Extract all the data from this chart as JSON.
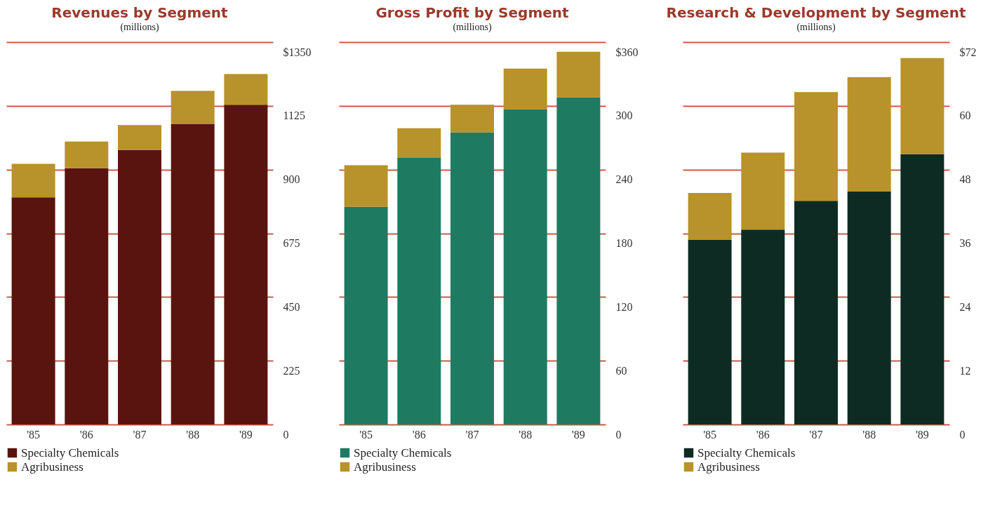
{
  "chart_data": [
    {
      "type": "bar",
      "title": "Revenues by Segment",
      "subtitle": "(millions)",
      "categories": [
        "'85",
        "'86",
        "'87",
        "'88",
        "'89"
      ],
      "stacked": true,
      "series": [
        {
          "name": "Specialty Chemicals",
          "color": "#5a1410",
          "values": [
            802,
            905,
            969,
            1060,
            1129
          ]
        },
        {
          "name": "Agribusiness",
          "color": "#b8922a",
          "values": [
            118,
            94,
            88,
            118,
            108
          ]
        }
      ],
      "ylim": [
        0,
        1350
      ],
      "yticks": [
        0,
        225,
        450,
        675,
        900,
        1125,
        {
          "value": 1350,
          "label": "$1350"
        }
      ],
      "grid": "y",
      "legend": "bottom"
    },
    {
      "type": "bar",
      "title": "Gross Profit by Segment",
      "subtitle": "(millions)",
      "categories": [
        "'85",
        "'86",
        "'87",
        "'88",
        "'89"
      ],
      "stacked": true,
      "series": [
        {
          "name": "Specialty Chemicals",
          "color": "#1f7a62",
          "values": [
            205,
            251,
            275,
            297,
            308
          ]
        },
        {
          "name": "Agribusiness",
          "color": "#b8922a",
          "values": [
            39,
            28,
            26,
            38,
            43
          ]
        }
      ],
      "ylim": [
        0,
        360
      ],
      "yticks": [
        0,
        60,
        120,
        180,
        240,
        300,
        {
          "value": 360,
          "label": "$360"
        }
      ],
      "grid": "y",
      "legend": "bottom"
    },
    {
      "type": "bar",
      "title": "Research & Development by Segment",
      "subtitle": "(millions)",
      "categories": [
        "'85",
        "'86",
        "'87",
        "'88",
        "'89"
      ],
      "stacked": true,
      "series": [
        {
          "name": "Specialty Chemicals",
          "color": "#0d2b22",
          "values": [
            34.8,
            36.7,
            42.1,
            43.9,
            50.9
          ]
        },
        {
          "name": "Agribusiness",
          "color": "#b8922a",
          "values": [
            8.8,
            14.5,
            20.5,
            21.5,
            18.1
          ]
        }
      ],
      "ylim": [
        0,
        72
      ],
      "yticks": [
        0,
        12,
        24,
        36,
        48,
        60,
        {
          "value": 72,
          "label": "$72"
        }
      ],
      "grid": "y",
      "legend": "bottom"
    }
  ]
}
